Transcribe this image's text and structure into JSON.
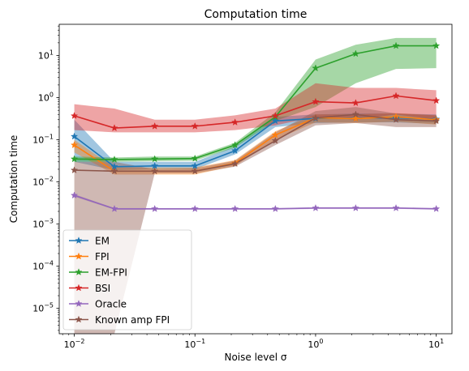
{
  "chart_data": {
    "type": "line",
    "title": "Computation time",
    "xlabel": "Noise level σ",
    "ylabel": "Computation time",
    "xscale": "log",
    "yscale": "log",
    "xlim": [
      0.0075,
      13.5
    ],
    "ylim": [
      2.5e-06,
      55
    ],
    "x_ticks": [
      {
        "value": 0.01,
        "base": "10",
        "exp": "−2"
      },
      {
        "value": 0.1,
        "base": "10",
        "exp": "−1"
      },
      {
        "value": 1,
        "base": "10",
        "exp": "0"
      },
      {
        "value": 10,
        "base": "10",
        "exp": "1"
      }
    ],
    "y_ticks": [
      {
        "value": 1e-05,
        "base": "10",
        "exp": "−5"
      },
      {
        "value": 0.0001,
        "base": "10",
        "exp": "−4"
      },
      {
        "value": 0.001,
        "base": "10",
        "exp": "−3"
      },
      {
        "value": 0.01,
        "base": "10",
        "exp": "−2"
      },
      {
        "value": 0.1,
        "base": "10",
        "exp": "−1"
      },
      {
        "value": 1,
        "base": "10",
        "exp": "0"
      },
      {
        "value": 10,
        "base": "10",
        "exp": "1"
      }
    ],
    "legend_position": "lower-left",
    "x": [
      0.01,
      0.0215,
      0.0464,
      0.1,
      0.215,
      0.464,
      1,
      2.15,
      4.64,
      10
    ],
    "series": [
      {
        "name": "EM",
        "color": "#1f77b4",
        "values": [
          0.12,
          0.023,
          0.024,
          0.024,
          0.055,
          0.28,
          0.32,
          0.33,
          0.33,
          0.31
        ],
        "lower": [
          0.03,
          0.019,
          0.02,
          0.02,
          0.045,
          0.2,
          0.25,
          0.26,
          0.26,
          0.24
        ],
        "upper": [
          0.3,
          0.03,
          0.03,
          0.03,
          0.07,
          0.35,
          0.4,
          0.42,
          0.42,
          0.4
        ]
      },
      {
        "name": "FPI",
        "color": "#ff7f0e",
        "values": [
          0.075,
          0.018,
          0.018,
          0.018,
          0.028,
          0.13,
          0.33,
          0.32,
          0.35,
          0.3
        ],
        "lower": [
          0.05,
          0.015,
          0.015,
          0.015,
          0.024,
          0.1,
          0.26,
          0.25,
          0.27,
          0.23
        ],
        "upper": [
          0.1,
          0.022,
          0.022,
          0.022,
          0.033,
          0.16,
          0.4,
          0.4,
          0.43,
          0.38
        ]
      },
      {
        "name": "EM-FPI",
        "color": "#2ca02c",
        "values": [
          0.035,
          0.034,
          0.035,
          0.036,
          0.075,
          0.35,
          5,
          11,
          17,
          17
        ],
        "lower": [
          0.03,
          0.03,
          0.031,
          0.032,
          0.065,
          0.28,
          0.6,
          2.2,
          4.8,
          5
        ],
        "upper": [
          0.04,
          0.038,
          0.04,
          0.04,
          0.085,
          0.45,
          8,
          18,
          26,
          26
        ]
      },
      {
        "name": "BSI",
        "color": "#d62728",
        "values": [
          0.37,
          0.19,
          0.21,
          0.21,
          0.26,
          0.37,
          0.8,
          0.75,
          1.1,
          0.85
        ],
        "lower": [
          0.17,
          0.15,
          0.15,
          0.15,
          0.17,
          0.22,
          0.35,
          0.3,
          0.4,
          0.3
        ],
        "upper": [
          0.7,
          0.55,
          0.3,
          0.3,
          0.38,
          0.55,
          2.2,
          1.7,
          1.7,
          1.5
        ]
      },
      {
        "name": "Oracle",
        "color": "#9467bd",
        "values": [
          0.0048,
          0.0023,
          0.0023,
          0.0023,
          0.0023,
          0.0023,
          0.0024,
          0.0024,
          0.0024,
          0.0023
        ],
        "lower": [
          0.0045,
          0.0022,
          0.0022,
          0.0022,
          0.0022,
          0.0022,
          0.0023,
          0.0023,
          0.0023,
          0.0022
        ],
        "upper": [
          0.0051,
          0.0024,
          0.0024,
          0.0024,
          0.0024,
          0.0024,
          0.0025,
          0.0025,
          0.0025,
          0.0024
        ]
      },
      {
        "name": "Known amp FPI",
        "color": "#8c564b",
        "values": [
          0.019,
          0.018,
          0.018,
          0.018,
          0.027,
          0.095,
          0.33,
          0.4,
          0.3,
          0.28
        ],
        "lower": [
          2.5e-06,
          2.5e-06,
          0.016,
          0.016,
          0.023,
          0.075,
          0.22,
          0.25,
          0.2,
          0.2
        ],
        "upper": [
          0.03,
          0.03,
          0.02,
          0.021,
          0.032,
          0.15,
          0.48,
          0.6,
          0.42,
          0.38
        ]
      }
    ]
  }
}
